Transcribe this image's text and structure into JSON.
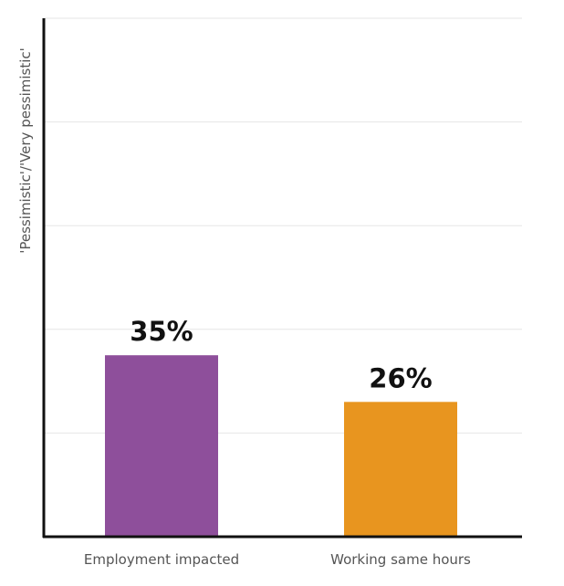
{
  "chart_data": {
    "type": "bar",
    "categories": [
      "Employment impacted",
      "Working same hours"
    ],
    "values": [
      35,
      26
    ],
    "data_labels": [
      "35%",
      "26%"
    ],
    "colors": [
      "#8e4f9b",
      "#e8951f"
    ],
    "title": "",
    "xlabel": "",
    "ylabel": "'Pessimistic'/'Very pessimistic'",
    "ylim": [
      0,
      100
    ],
    "grid": true,
    "legend": "none"
  }
}
